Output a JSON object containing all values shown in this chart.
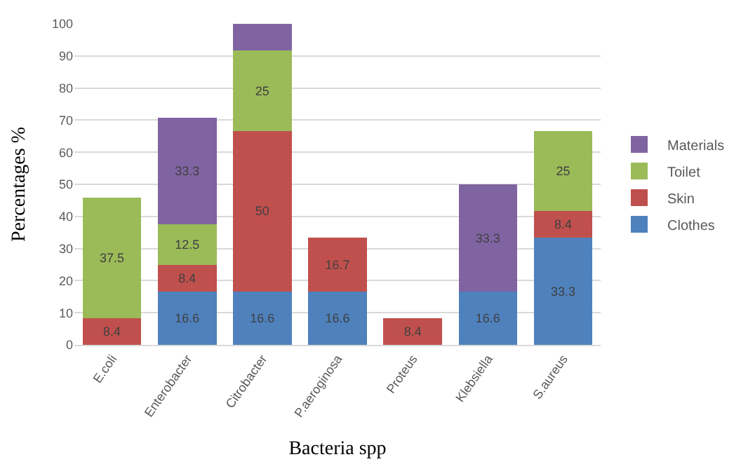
{
  "chart_data": {
    "type": "bar",
    "stacked": true,
    "xlabel": "Bacteria spp",
    "ylabel": "Percentages %",
    "categories": [
      "E.coli",
      "Enterobacter",
      "Citrobacter",
      "P.aeroginosa",
      "Proteus",
      "Klebsiella",
      "S.aureus"
    ],
    "series": [
      {
        "name": "Clothes",
        "color": "#4f81bd",
        "values": [
          null,
          16.6,
          16.6,
          16.6,
          null,
          16.6,
          33.3
        ],
        "value_labels": [
          null,
          "16.6",
          "16.6",
          "16.6",
          null,
          "16.6",
          "33.3"
        ]
      },
      {
        "name": "Skin",
        "color": "#c0504d",
        "values": [
          8.4,
          8.4,
          50,
          16.7,
          8.4,
          null,
          8.4
        ],
        "value_labels": [
          "8.4",
          "8.4",
          "50",
          "16.7",
          "8.4",
          null,
          "8.4"
        ]
      },
      {
        "name": "Toilet",
        "color": "#9bbb59",
        "values": [
          37.5,
          12.5,
          25,
          null,
          null,
          null,
          25
        ],
        "value_labels": [
          "37.5",
          "12.5",
          "25",
          null,
          null,
          null,
          "25"
        ]
      },
      {
        "name": "Materials",
        "color": "#8064a2",
        "values": [
          null,
          33.3,
          8.4,
          null,
          null,
          33.3,
          null
        ],
        "value_labels": [
          null,
          "33.3",
          null,
          null,
          null,
          "33.3",
          null
        ]
      }
    ],
    "ylim": [
      0,
      100
    ],
    "yticks": [
      0,
      10,
      20,
      30,
      40,
      50,
      60,
      70,
      80,
      90,
      100
    ],
    "grid": "y",
    "legend": "right"
  }
}
